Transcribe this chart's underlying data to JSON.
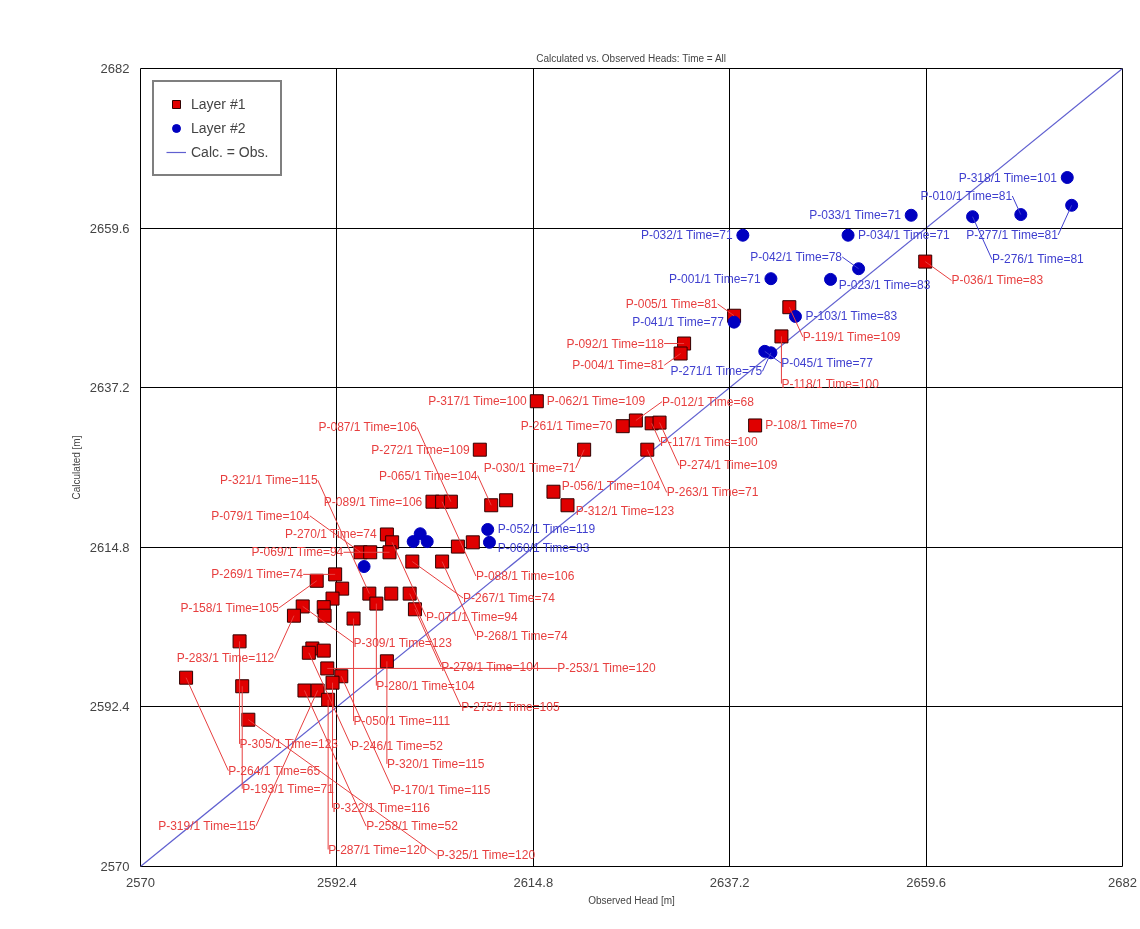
{
  "chart_data": {
    "type": "scatter",
    "title": "Calculated vs. Observed Heads: Time = All",
    "xlabel": "Observed Head [m]",
    "ylabel": "Calculated [m]",
    "xlim": [
      2570,
      2682
    ],
    "ylim": [
      2570,
      2682
    ],
    "xticks": [
      2570,
      2592.4,
      2614.8,
      2637.2,
      2659.6,
      2682
    ],
    "yticks": [
      2570,
      2592.4,
      2614.8,
      2637.2,
      2659.6,
      2682
    ],
    "grid": true,
    "legend": "top left",
    "series": [
      {
        "name": "Layer #1",
        "color": "#e00000",
        "marker": "square",
        "x": [
          2659.5,
          2644.0,
          2637.7,
          2643.1,
          2632.0,
          2631.6,
          2640.1,
          2615.2,
          2625.0,
          2626.5,
          2628.3,
          2629.2,
          2620.6,
          2627.8,
          2608.7,
          2617.1,
          2618.7,
          2610.0,
          2611.7,
          2603.3,
          2604.4,
          2605.4,
          2598.1,
          2598.7,
          2598.4,
          2595.1,
          2596.2,
          2601.0,
          2604.4,
          2606.2,
          2607.9,
          2592.2,
          2590.1,
          2593.0,
          2591.9,
          2596.1,
          2596.9,
          2598.6,
          2600.7,
          2601.3,
          2588.5,
          2587.5,
          2590.9,
          2591.0,
          2594.3,
          2581.3,
          2589.6,
          2589.2,
          2590.9,
          2598.1,
          2591.3,
          2592.9,
          2591.9,
          2575.2,
          2581.6,
          2588.7,
          2590.2,
          2591.4,
          2582.3
        ],
        "values": [
          2654.9,
          2648.5,
          2647.3,
          2644.4,
          2643.4,
          2642.0,
          2631.9,
          2635.3,
          2631.8,
          2632.6,
          2632.2,
          2632.3,
          2628.5,
          2628.5,
          2628.5,
          2622.6,
          2620.7,
          2620.7,
          2621.4,
          2621.2,
          2621.2,
          2621.2,
          2616.6,
          2615.5,
          2614.1,
          2614.1,
          2614.1,
          2612.8,
          2612.8,
          2614.9,
          2615.5,
          2611.0,
          2610.1,
          2609.0,
          2607.6,
          2608.3,
          2606.9,
          2608.3,
          2608.3,
          2606.1,
          2606.5,
          2605.2,
          2606.4,
          2605.2,
          2604.8,
          2601.6,
          2600.6,
          2600.0,
          2600.3,
          2598.8,
          2597.8,
          2596.7,
          2595.8,
          2596.5,
          2595.3,
          2594.7,
          2594.7,
          2593.4,
          2590.6
        ]
      },
      {
        "name": "Layer #2",
        "color": "#0000c0",
        "marker": "circle",
        "x": [
          2675.7,
          2676.2,
          2670.4,
          2664.9,
          2657.9,
          2650.7,
          2638.7,
          2641.9,
          2648.7,
          2651.9,
          2644.7,
          2637.7,
          2641.2,
          2641.9,
          2601.1,
          2601.9,
          2602.7,
          2609.6,
          2609.8,
          2595.5
        ],
        "values": [
          2666.7,
          2662.8,
          2661.5,
          2661.2,
          2661.4,
          2658.6,
          2658.6,
          2652.5,
          2652.4,
          2653.9,
          2647.2,
          2646.4,
          2642.3,
          2642.1,
          2615.6,
          2616.7,
          2615.6,
          2617.3,
          2615.5,
          2612.1
        ]
      },
      {
        "name": "Calc. = Obs.",
        "type": "line",
        "color": "#6060d0",
        "x": [
          2570,
          2682
        ],
        "values": [
          2570,
          2682
        ]
      }
    ],
    "annotations": [
      {
        "text": "P-318/1 Time=101",
        "x": 2675.7,
        "y": 2666.7
      },
      {
        "text": "P-277/1 Time=81",
        "x": 2676.2,
        "y": 2662.8
      },
      {
        "text": "P-010/1 Time=81",
        "x": 2670.4,
        "y": 2661.5
      },
      {
        "text": "P-276/1 Time=81",
        "x": 2664.9,
        "y": 2661.2
      },
      {
        "text": "P-033/1 Time=71",
        "x": 2657.9,
        "y": 2661.4
      },
      {
        "text": "P-034/1 Time=71",
        "x": 2650.7,
        "y": 2658.6
      },
      {
        "text": "P-032/1 Time=71",
        "x": 2638.7,
        "y": 2658.6
      },
      {
        "text": "P-001/1 Time=71",
        "x": 2641.9,
        "y": 2652.5
      },
      {
        "text": "P-023/1 Time=83",
        "x": 2648.7,
        "y": 2652.4
      },
      {
        "text": "P-042/1 Time=78",
        "x": 2651.9,
        "y": 2653.9
      },
      {
        "text": "P-103/1 Time=83",
        "x": 2644.7,
        "y": 2647.2
      },
      {
        "text": "P-041/1 Time=77",
        "x": 2637.7,
        "y": 2646.4
      },
      {
        "text": "P-045/1 Time=77",
        "x": 2641.2,
        "y": 2642.3
      },
      {
        "text": "P-271/1 Time=75",
        "x": 2641.9,
        "y": 2642.1
      },
      {
        "text": "P-052/1 Time=119",
        "x": 2609.6,
        "y": 2617.3
      },
      {
        "text": "P-060/1 Time=83",
        "x": 2609.8,
        "y": 2615.5
      },
      {
        "text": "P-036/1 Time=83",
        "x": 2659.5,
        "y": 2654.9
      },
      {
        "text": "P-119/1 Time=109",
        "x": 2644.0,
        "y": 2648.5
      },
      {
        "text": "P-005/1 Time=81",
        "x": 2637.7,
        "y": 2647.3
      },
      {
        "text": "P-118/1 Time=100",
        "x": 2643.1,
        "y": 2644.4
      },
      {
        "text": "P-092/1 Time=118",
        "x": 2632.0,
        "y": 2643.4
      },
      {
        "text": "P-004/1 Time=81",
        "x": 2631.6,
        "y": 2642.0
      },
      {
        "text": "P-108/1 Time=70",
        "x": 2640.1,
        "y": 2631.9
      },
      {
        "text": "P-062/1 Time=109",
        "x": 2615.2,
        "y": 2635.3
      },
      {
        "text": "P-317/1 Time=100",
        "x": 2615.2,
        "y": 2635.3
      },
      {
        "text": "P-261/1 Time=70",
        "x": 2625.0,
        "y": 2631.8
      },
      {
        "text": "P-012/1 Time=68",
        "x": 2626.5,
        "y": 2632.6
      },
      {
        "text": "P-117/1 Time=100",
        "x": 2628.3,
        "y": 2632.2
      },
      {
        "text": "P-274/1 Time=109",
        "x": 2629.2,
        "y": 2632.3
      },
      {
        "text": "P-030/1 Time=71",
        "x": 2620.6,
        "y": 2628.5
      },
      {
        "text": "P-263/1 Time=71",
        "x": 2627.8,
        "y": 2628.5
      },
      {
        "text": "P-272/1 Time=109",
        "x": 2608.7,
        "y": 2628.5
      },
      {
        "text": "P-056/1 Time=104",
        "x": 2617.1,
        "y": 2622.6
      },
      {
        "text": "P-312/1 Time=123",
        "x": 2618.7,
        "y": 2620.7
      },
      {
        "text": "P-065/1 Time=104",
        "x": 2610.0,
        "y": 2620.7
      },
      {
        "text": "P-089/1 Time=106",
        "x": 2603.3,
        "y": 2621.2
      },
      {
        "text": "P-088/1 Time=106",
        "x": 2604.4,
        "y": 2621.2
      },
      {
        "text": "P-087/1 Time=106",
        "x": 2605.4,
        "y": 2621.2
      },
      {
        "text": "P-270/1 Time=74",
        "x": 2598.1,
        "y": 2616.6
      },
      {
        "text": "P-071/1 Time=94",
        "x": 2598.7,
        "y": 2615.5
      },
      {
        "text": "P-069/1 Time=94",
        "x": 2598.4,
        "y": 2614.1
      },
      {
        "text": "P-079/1 Time=104",
        "x": 2595.1,
        "y": 2614.1
      },
      {
        "text": "P-267/1 Time=74",
        "x": 2601.0,
        "y": 2612.8
      },
      {
        "text": "P-268/1 Time=74",
        "x": 2604.4,
        "y": 2612.8
      },
      {
        "text": "P-269/1 Time=74",
        "x": 2592.2,
        "y": 2611.0
      },
      {
        "text": "P-158/1 Time=105",
        "x": 2590.1,
        "y": 2610.1
      },
      {
        "text": "P-309/1 Time=123",
        "x": 2588.5,
        "y": 2606.5
      },
      {
        "text": "P-283/1 Time=112",
        "x": 2587.5,
        "y": 2605.2
      },
      {
        "text": "P-279/1 Time=104",
        "x": 2601.3,
        "y": 2606.1
      },
      {
        "text": "P-280/1 Time=104",
        "x": 2596.9,
        "y": 2606.9
      },
      {
        "text": "P-275/1 Time=105",
        "x": 2600.7,
        "y": 2608.3
      },
      {
        "text": "P-321/1 Time=115",
        "x": 2596.1,
        "y": 2608.3
      },
      {
        "text": "P-050/1 Time=111",
        "x": 2594.3,
        "y": 2604.8
      },
      {
        "text": "P-305/1 Time=123",
        "x": 2581.3,
        "y": 2601.6
      },
      {
        "text": "P-246/1 Time=52",
        "x": 2589.2,
        "y": 2600.0
      },
      {
        "text": "P-320/1 Time=115",
        "x": 2598.1,
        "y": 2598.8
      },
      {
        "text": "P-264/1 Time=65",
        "x": 2575.2,
        "y": 2596.5
      },
      {
        "text": "P-170/1 Time=115",
        "x": 2592.9,
        "y": 2596.7
      },
      {
        "text": "P-193/1 Time=71",
        "x": 2581.6,
        "y": 2595.3
      },
      {
        "text": "P-322/1 Time=116",
        "x": 2591.9,
        "y": 2595.8
      },
      {
        "text": "P-258/1 Time=52",
        "x": 2588.7,
        "y": 2594.7
      },
      {
        "text": "P-319/1 Time=115",
        "x": 2590.2,
        "y": 2594.7
      },
      {
        "text": "P-287/1 Time=120",
        "x": 2591.4,
        "y": 2593.4
      },
      {
        "text": "P-325/1 Time=120",
        "x": 2582.3,
        "y": 2590.6
      },
      {
        "text": "P-253/1 Time=120",
        "x": 2591.3,
        "y": 2597.8
      }
    ]
  }
}
